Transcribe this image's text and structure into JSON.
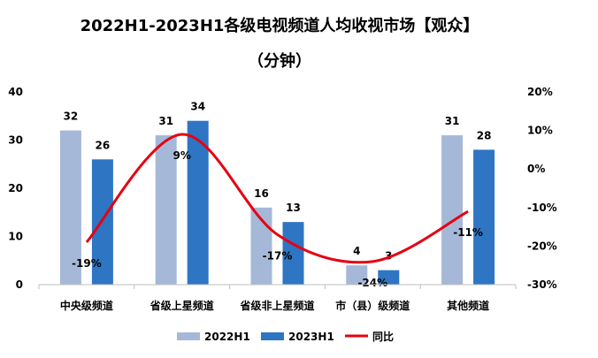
{
  "chart_data": {
    "type": "bar",
    "title": "2022H1-2023H1各级电视频道人均收视市场【观众】",
    "subtitle": "（分钟）",
    "categories": [
      "中央级频道",
      "省级上星频道",
      "省级非上星频道",
      "市（县）级频道",
      "其他频道"
    ],
    "series": [
      {
        "name": "2022H1",
        "type": "bar",
        "axis": "left",
        "color": "#A5B8D8",
        "values": [
          32,
          31,
          16,
          4,
          31
        ]
      },
      {
        "name": "2023H1",
        "type": "bar",
        "axis": "left",
        "color": "#2E75C3",
        "values": [
          26,
          34,
          13,
          3,
          28
        ]
      },
      {
        "name": "同比",
        "type": "line",
        "axis": "right",
        "color": "#E60012",
        "values": [
          -19,
          9,
          -17,
          -24,
          -11
        ],
        "labels": [
          "-19%",
          "9%",
          "-17%",
          "-24%",
          "-11%"
        ]
      }
    ],
    "y_left": {
      "min": 0,
      "max": 40,
      "ticks": [
        "0",
        "10",
        "20",
        "30",
        "40"
      ]
    },
    "y_right": {
      "min": -30,
      "max": 20,
      "ticks": [
        "-30%",
        "-20%",
        "-10%",
        "0%",
        "10%",
        "20%"
      ]
    },
    "legend": {
      "position": "bottom"
    },
    "grid": false
  }
}
